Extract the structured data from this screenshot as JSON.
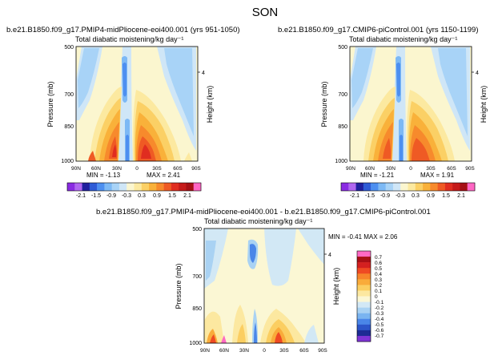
{
  "figure_title": "SON",
  "chart_data": [
    {
      "type": "heatmap",
      "run_title": "b.e21.B1850.f09_g17.PMIP4-midPliocene-eoi400.001 (yrs 951-1050)",
      "title": "Total diabatic moistening/kg day⁻¹",
      "xlabel": "",
      "ylabel": "Pressure (mb)",
      "ylabel_right": "Height (km)",
      "x_ticks": [
        "90N",
        "60N",
        "30N",
        "0",
        "30S",
        "60S",
        "90S"
      ],
      "y_ticks": [
        "500",
        "700",
        "850",
        "1000"
      ],
      "right_ticks": [
        "4"
      ],
      "ylim": [
        1000,
        500
      ],
      "min_label": "MIN  =  -1.13",
      "max_label": "MAX  =   2.41",
      "colorbar_labels": [
        "-2.1",
        "-1.5",
        "-0.9",
        "-0.3",
        "0.3",
        "0.9",
        "1.5",
        "2.1"
      ]
    },
    {
      "type": "heatmap",
      "run_title": "b.e21.B1850.f09_g17.CMIP6-piControl.001 (yrs 1150-1199)",
      "title": "Total diabatic moistening/kg day⁻¹",
      "xlabel": "",
      "ylabel": "Pressure (mb)",
      "ylabel_right": "Height (km)",
      "x_ticks": [
        "90N",
        "60N",
        "30N",
        "0",
        "30S",
        "60S",
        "90S"
      ],
      "y_ticks": [
        "500",
        "700",
        "850",
        "1000"
      ],
      "right_ticks": [
        "4"
      ],
      "ylim": [
        1000,
        500
      ],
      "min_label": "MIN  =  -1.21",
      "max_label": "MAX  =   1.91",
      "colorbar_labels": [
        "-2.1",
        "-1.5",
        "-0.9",
        "-0.3",
        "0.3",
        "0.9",
        "1.5",
        "2.1"
      ]
    },
    {
      "type": "heatmap",
      "run_title": "b.e21.B1850.f09_g17.PMIP4-midPliocene-eoi400.001 - b.e21.B1850.f09_g17.CMIP6-piControl.001",
      "title": "Total diabatic moistening/kg day⁻¹",
      "xlabel": "",
      "ylabel": "Pressure (mb)",
      "ylabel_right": "Height (km)",
      "x_ticks": [
        "90N",
        "60N",
        "30N",
        "0",
        "30S",
        "60S",
        "90S"
      ],
      "y_ticks": [
        "500",
        "700",
        "850",
        "1000"
      ],
      "right_ticks": [
        "4"
      ],
      "ylim": [
        1000,
        500
      ],
      "min_max_label": "MIN  =  -0.41    MAX  =   2.06",
      "colorbar_labels": [
        "0.7",
        "0.6",
        "0.5",
        "0.4",
        "0.3",
        "0.2",
        "0.1",
        "0",
        "-0.1",
        "-0.2",
        "-0.3",
        "-0.4",
        "-0.5",
        "-0.6",
        "-0.7"
      ]
    }
  ],
  "colors": {
    "scale": [
      "#8a2be2",
      "#b066f0",
      "#1f1f9e",
      "#2e5bd6",
      "#4d8ff0",
      "#7db9f5",
      "#a8d3f7",
      "#cfe6f7",
      "#fbf6cf",
      "#fce9a0",
      "#fbd065",
      "#f9b13a",
      "#f78a2c",
      "#ef5a24",
      "#e02d20",
      "#c51a1a",
      "#a50f15",
      "#ff66c4"
    ],
    "diff_scale": [
      "#ff69c4",
      "#a80f15",
      "#d42020",
      "#ef4a23",
      "#f7852b",
      "#f9ab3a",
      "#fbce61",
      "#fce8a0",
      "#fbf7d4",
      "#d2e8f5",
      "#a9d2f3",
      "#7ab4f0",
      "#4a86e8",
      "#2c55c9",
      "#1d2b94",
      "#7f35d6"
    ]
  }
}
